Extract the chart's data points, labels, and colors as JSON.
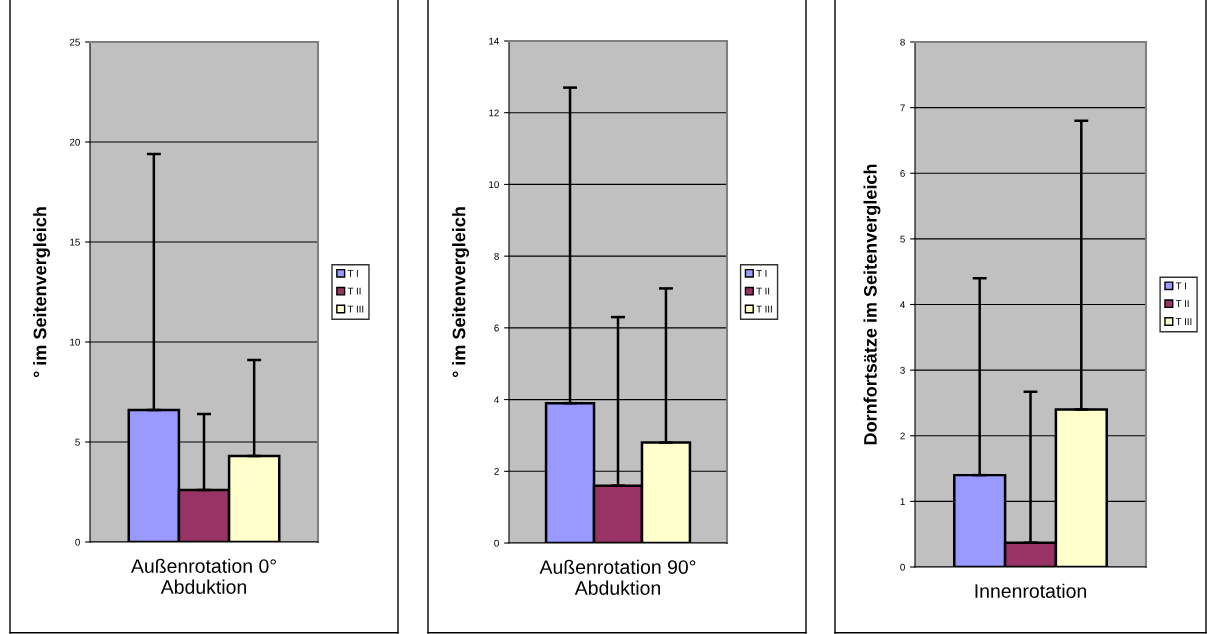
{
  "chart_data": [
    {
      "type": "bar",
      "categories": [
        "Außenrotation 0°\nAbduktion"
      ],
      "ylabel": "° im Seitenvergleich",
      "ylim": [
        0,
        25
      ],
      "yticks": [
        0,
        5,
        10,
        15,
        20,
        25
      ],
      "grid": "y",
      "legend": "right",
      "series": [
        {
          "name": "T I",
          "color": "#9999ff",
          "values": [
            6.6
          ],
          "errors": [
            [
              6.6,
              19.4
            ]
          ]
        },
        {
          "name": "T II",
          "color": "#993366",
          "values": [
            2.6
          ],
          "errors": [
            [
              2.6,
              6.4
            ]
          ]
        },
        {
          "name": "T III",
          "color": "#ffffcc",
          "values": [
            4.3
          ],
          "errors": [
            [
              4.3,
              9.1
            ]
          ]
        }
      ]
    },
    {
      "type": "bar",
      "categories": [
        "Außenrotation 90°\nAbduktion"
      ],
      "ylabel": "° im Seitenvergleich",
      "ylim": [
        0,
        14
      ],
      "yticks": [
        0,
        2,
        4,
        6,
        8,
        10,
        12,
        14
      ],
      "grid": "y",
      "legend": "right",
      "series": [
        {
          "name": "T I",
          "color": "#9999ff",
          "values": [
            3.9
          ],
          "errors": [
            [
              3.9,
              12.7
            ]
          ]
        },
        {
          "name": "T II",
          "color": "#993366",
          "values": [
            1.6
          ],
          "errors": [
            [
              1.6,
              6.3
            ]
          ]
        },
        {
          "name": "T III",
          "color": "#ffffcc",
          "values": [
            2.8
          ],
          "errors": [
            [
              2.8,
              7.1
            ]
          ]
        }
      ]
    },
    {
      "type": "bar",
      "categories": [
        "Innenrotation"
      ],
      "ylabel": "Dornfortsätze im Seitenvergleich",
      "ylim": [
        0,
        8
      ],
      "yticks": [
        0,
        1,
        2,
        3,
        4,
        5,
        6,
        7,
        8
      ],
      "grid": "y",
      "legend": "right",
      "series": [
        {
          "name": "T I",
          "color": "#9999ff",
          "values": [
            1.4
          ],
          "errors": [
            [
              1.4,
              4.4
            ]
          ]
        },
        {
          "name": "T II",
          "color": "#993366",
          "values": [
            0.37
          ],
          "errors": [
            [
              0.37,
              2.67
            ]
          ]
        },
        {
          "name": "T III",
          "color": "#ffffcc",
          "values": [
            2.4
          ],
          "errors": [
            [
              2.4,
              6.8
            ]
          ]
        }
      ]
    }
  ]
}
